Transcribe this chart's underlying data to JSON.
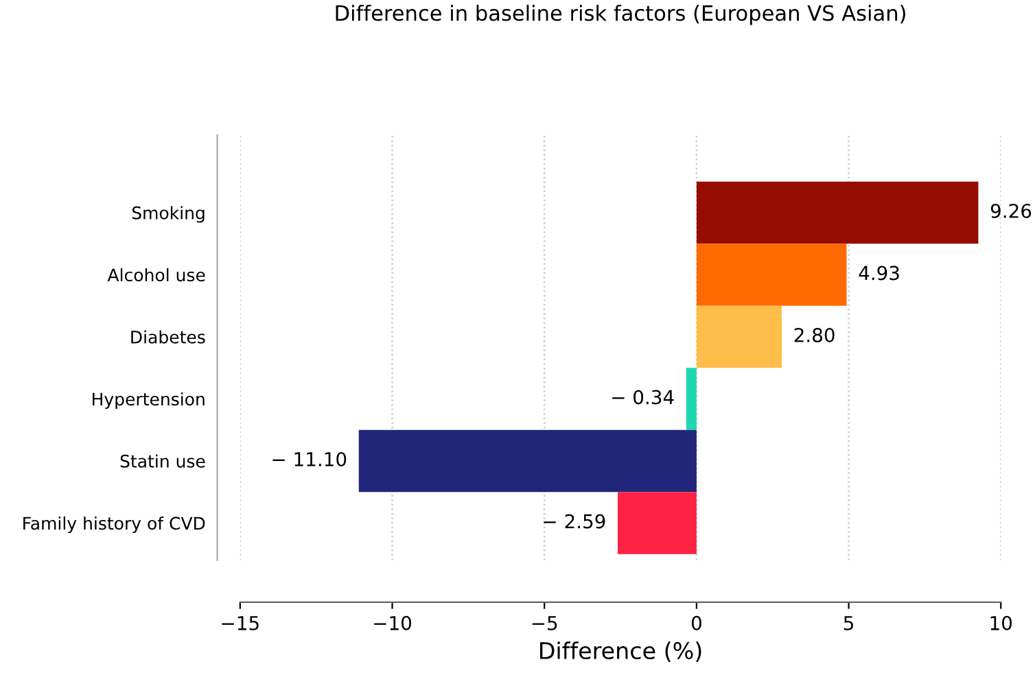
{
  "chart_data": {
    "type": "bar",
    "orientation": "horizontal",
    "title": "Difference in baseline risk factors (European VS Asian)",
    "xlabel": "Difference (%)",
    "categories": [
      "Smoking",
      "Alcohol use",
      "Diabetes",
      "Hypertension",
      "Statin use",
      "Family history of CVD"
    ],
    "values": [
      9.26,
      4.93,
      2.8,
      -0.34,
      -11.1,
      -2.59
    ],
    "colors": [
      "#960c00",
      "#ff6a00",
      "#ffbd4a",
      "#1fd8b0",
      "#21267a",
      "#ff2244"
    ],
    "value_labels": [
      "9.26",
      "4.93",
      "2.80",
      "− 0.34",
      "− 11.10",
      "− 2.59"
    ],
    "xlim": [
      -15,
      10
    ],
    "xticks": [
      {
        "value": -15,
        "label": "−15"
      },
      {
        "value": -10,
        "label": "−10"
      },
      {
        "value": -5,
        "label": "−5"
      },
      0,
      5,
      10
    ],
    "grid": "x"
  }
}
